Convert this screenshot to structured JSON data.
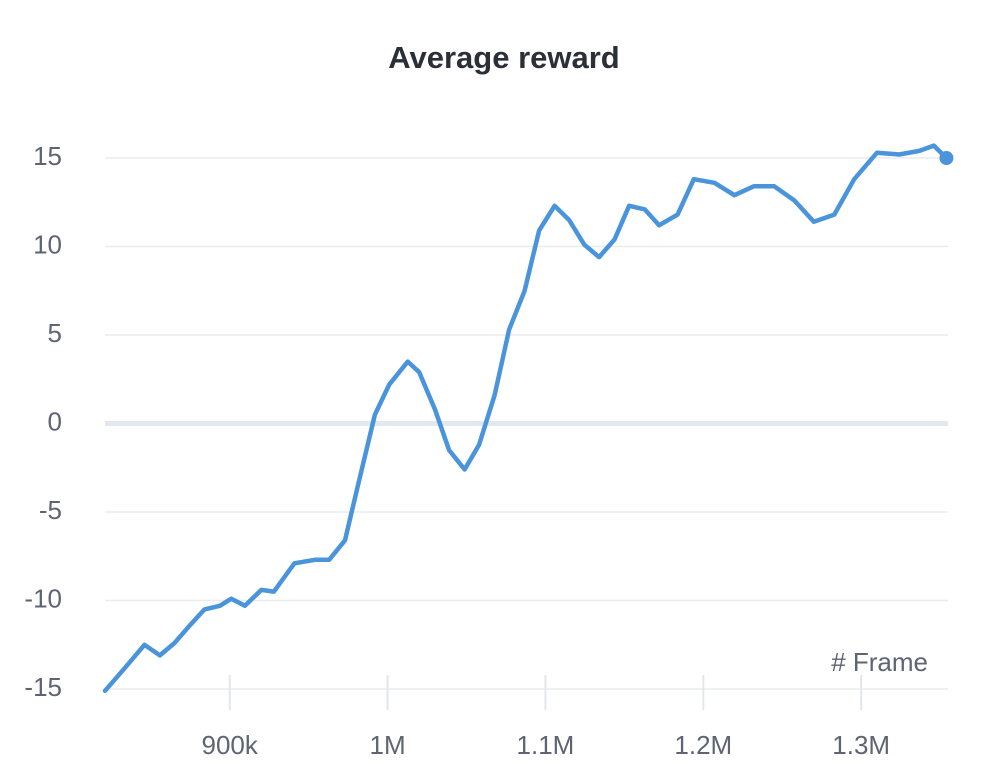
{
  "chart_data": {
    "type": "line",
    "title": "Average reward",
    "x_label": "# Frame",
    "x": [
      821000,
      833700,
      846000,
      855800,
      865000,
      874800,
      884000,
      893800,
      901000,
      909600,
      920000,
      928000,
      941000,
      954000,
      963000,
      973000,
      982000,
      992000,
      1001000,
      1012800,
      1020000,
      1030000,
      1039000,
      1048800,
      1058000,
      1067800,
      1077000,
      1086800,
      1096000,
      1105800,
      1115000,
      1124600,
      1134000,
      1143800,
      1153000,
      1162800,
      1172000,
      1183700,
      1194000,
      1207000,
      1219700,
      1232000,
      1245000,
      1257700,
      1270000,
      1283000,
      1295600,
      1310000,
      1324000,
      1336800,
      1346000,
      1354000
    ],
    "series": [
      {
        "name": "Average reward",
        "color": "#4a94db",
        "values": [
          -15.1,
          -13.8,
          -12.5,
          -13.1,
          -12.4,
          -11.4,
          -10.5,
          -10.3,
          -9.9,
          -10.3,
          -9.4,
          -9.5,
          -7.9,
          -7.7,
          -7.7,
          -6.6,
          -3.2,
          0.5,
          2.2,
          3.5,
          2.9,
          0.8,
          -1.5,
          -2.6,
          -1.2,
          1.6,
          5.3,
          7.5,
          10.9,
          12.3,
          11.5,
          10.1,
          9.4,
          10.4,
          12.3,
          12.1,
          11.2,
          11.8,
          13.8,
          13.6,
          12.9,
          13.4,
          13.4,
          12.6,
          11.4,
          11.8,
          13.8,
          15.3,
          15.2,
          15.4,
          15.7,
          15.0
        ]
      }
    ],
    "xlim": [
      821000,
      1355000
    ],
    "ylim": [
      -15,
      16
    ],
    "xticks": [
      {
        "value": 900000,
        "label": "900k"
      },
      {
        "value": 1000000,
        "label": "1M"
      },
      {
        "value": 1100000,
        "label": "1.1M"
      },
      {
        "value": 1200000,
        "label": "1.2M"
      },
      {
        "value": 1300000,
        "label": "1.3M"
      }
    ],
    "yticks": [
      -15,
      -10,
      -5,
      0,
      5,
      10,
      15
    ],
    "grid": true
  }
}
